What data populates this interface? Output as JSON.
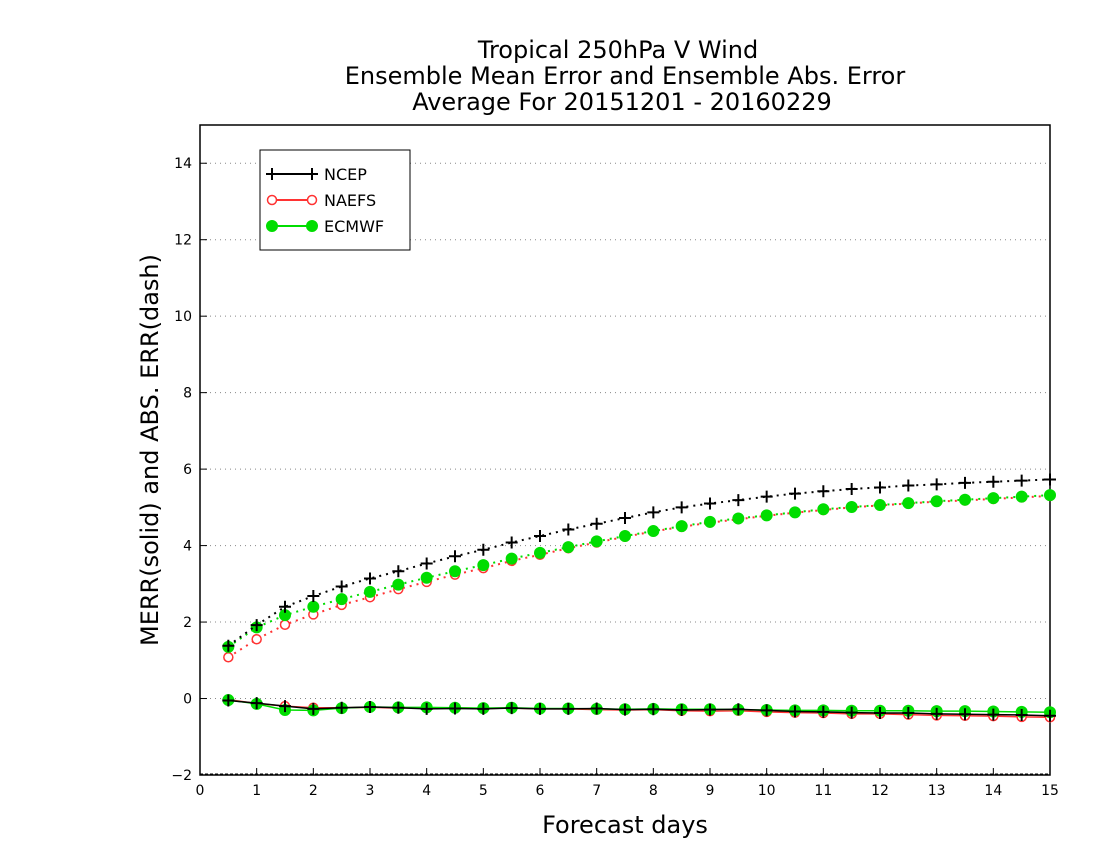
{
  "chart_data": {
    "type": "line",
    "title": [
      "Tropical 250hPa V Wind",
      "Ensemble Mean Error and Ensemble Abs. Error",
      "Average For 20151201 - 20160229"
    ],
    "xlabel": "Forecast days",
    "ylabel": "MERR(solid) and ABS. ERR(dash)",
    "xlim": [
      0,
      15
    ],
    "ylim": [
      -2,
      15
    ],
    "xticks": [
      0,
      1,
      2,
      3,
      4,
      5,
      6,
      7,
      8,
      9,
      10,
      11,
      12,
      13,
      14,
      15
    ],
    "yticks": [
      -2,
      0,
      2,
      4,
      6,
      8,
      10,
      12,
      14
    ],
    "grid": "horizontal dotted",
    "legend_position": "top-left",
    "x": [
      0.5,
      1,
      1.5,
      2,
      2.5,
      3,
      3.5,
      4,
      4.5,
      5,
      5.5,
      6,
      6.5,
      7,
      7.5,
      8,
      8.5,
      9,
      9.5,
      10,
      10.5,
      11,
      11.5,
      12,
      12.5,
      13,
      13.5,
      14,
      14.5,
      15
    ],
    "series": [
      {
        "name": "NCEP",
        "color": "#000000",
        "marker": "plus",
        "abs_err": [
          1.38,
          1.92,
          2.4,
          2.68,
          2.93,
          3.14,
          3.33,
          3.53,
          3.72,
          3.89,
          4.08,
          4.25,
          4.42,
          4.57,
          4.72,
          4.87,
          5.0,
          5.1,
          5.19,
          5.28,
          5.36,
          5.42,
          5.48,
          5.52,
          5.57,
          5.6,
          5.64,
          5.67,
          5.7,
          5.73
        ],
        "mean_err": [
          -0.05,
          -0.12,
          -0.2,
          -0.27,
          -0.24,
          -0.22,
          -0.24,
          -0.27,
          -0.26,
          -0.27,
          -0.25,
          -0.27,
          -0.27,
          -0.26,
          -0.29,
          -0.28,
          -0.3,
          -0.29,
          -0.28,
          -0.31,
          -0.34,
          -0.35,
          -0.37,
          -0.38,
          -0.38,
          -0.4,
          -0.41,
          -0.42,
          -0.43,
          -0.45
        ]
      },
      {
        "name": "NAEFS",
        "color": "#ff3333",
        "marker": "open-circle",
        "abs_err": [
          1.08,
          1.55,
          1.93,
          2.2,
          2.45,
          2.65,
          2.86,
          3.05,
          3.24,
          3.41,
          3.6,
          3.76,
          3.93,
          4.08,
          4.23,
          4.37,
          4.49,
          4.6,
          4.69,
          4.78,
          4.86,
          4.93,
          5.0,
          5.05,
          5.1,
          5.15,
          5.18,
          5.22,
          5.26,
          5.3
        ],
        "mean_err": [
          -0.03,
          -0.13,
          -0.2,
          -0.24,
          -0.24,
          -0.23,
          -0.25,
          -0.24,
          -0.24,
          -0.26,
          -0.25,
          -0.27,
          -0.27,
          -0.29,
          -0.3,
          -0.29,
          -0.32,
          -0.33,
          -0.32,
          -0.35,
          -0.37,
          -0.38,
          -0.4,
          -0.4,
          -0.42,
          -0.44,
          -0.45,
          -0.46,
          -0.48,
          -0.49
        ]
      },
      {
        "name": "ECMWF",
        "color": "#00dd00",
        "marker": "filled-circle",
        "abs_err": [
          1.35,
          1.86,
          2.18,
          2.4,
          2.6,
          2.79,
          2.98,
          3.16,
          3.33,
          3.49,
          3.66,
          3.81,
          3.96,
          4.11,
          4.25,
          4.38,
          4.51,
          4.62,
          4.71,
          4.79,
          4.87,
          4.95,
          5.01,
          5.06,
          5.11,
          5.16,
          5.2,
          5.24,
          5.28,
          5.32
        ],
        "mean_err": [
          -0.04,
          -0.14,
          -0.3,
          -0.31,
          -0.25,
          -0.22,
          -0.23,
          -0.23,
          -0.24,
          -0.25,
          -0.24,
          -0.26,
          -0.26,
          -0.27,
          -0.28,
          -0.27,
          -0.28,
          -0.28,
          -0.29,
          -0.3,
          -0.31,
          -0.31,
          -0.32,
          -0.32,
          -0.32,
          -0.33,
          -0.33,
          -0.34,
          -0.35,
          -0.36
        ]
      }
    ]
  }
}
